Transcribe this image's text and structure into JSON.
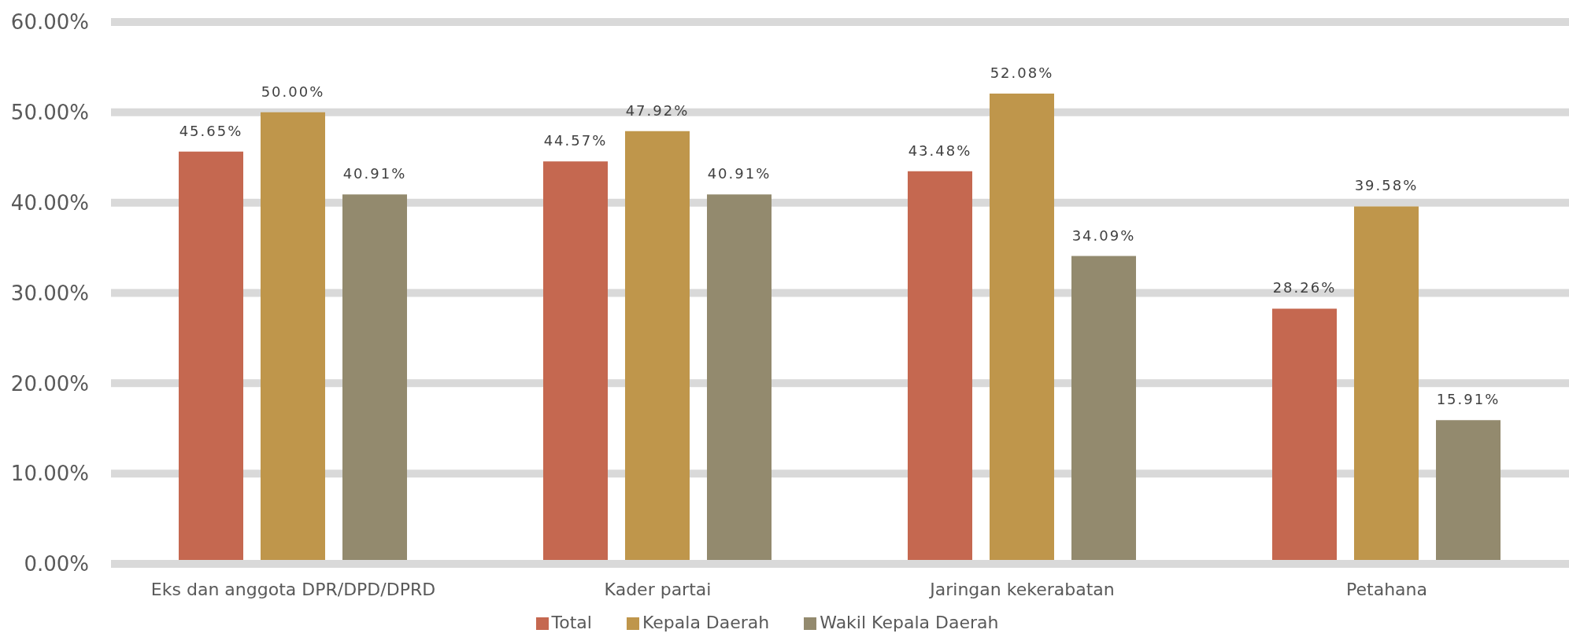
{
  "chart_data": {
    "type": "bar",
    "categories": [
      "Eks dan anggota DPR/DPD/DPRD",
      "Kader partai",
      "Jaringan kekerabatan",
      "Petahana"
    ],
    "series": [
      {
        "name": "Total",
        "color": "#c56850",
        "values": [
          45.65,
          44.57,
          43.48,
          28.26
        ],
        "value_labels": [
          "45.65%",
          "44.57%",
          "43.48%",
          "28.26%"
        ]
      },
      {
        "name": "Kepala Daerah",
        "color": "#bf964b",
        "values": [
          50.0,
          47.92,
          52.08,
          39.58
        ],
        "value_labels": [
          "50.00%",
          "47.92%",
          "52.08%",
          "39.58%"
        ]
      },
      {
        "name": "Wakil Kepala Daerah",
        "color": "#938a6e",
        "values": [
          40.91,
          40.91,
          34.09,
          15.91
        ],
        "value_labels": [
          "40.91%",
          "40.91%",
          "34.09%",
          "15.91%"
        ]
      }
    ],
    "ylim": [
      0,
      60
    ],
    "yticks": [
      {
        "value": 0,
        "label": "0.00%"
      },
      {
        "value": 10,
        "label": "10.00%"
      },
      {
        "value": 20,
        "label": "20.00%"
      },
      {
        "value": 30,
        "label": "30.00%"
      },
      {
        "value": 40,
        "label": "40.00%"
      },
      {
        "value": 50,
        "label": "50.00%"
      },
      {
        "value": 60,
        "label": "60.00%"
      }
    ],
    "grid": "y",
    "legend": "bottom"
  }
}
